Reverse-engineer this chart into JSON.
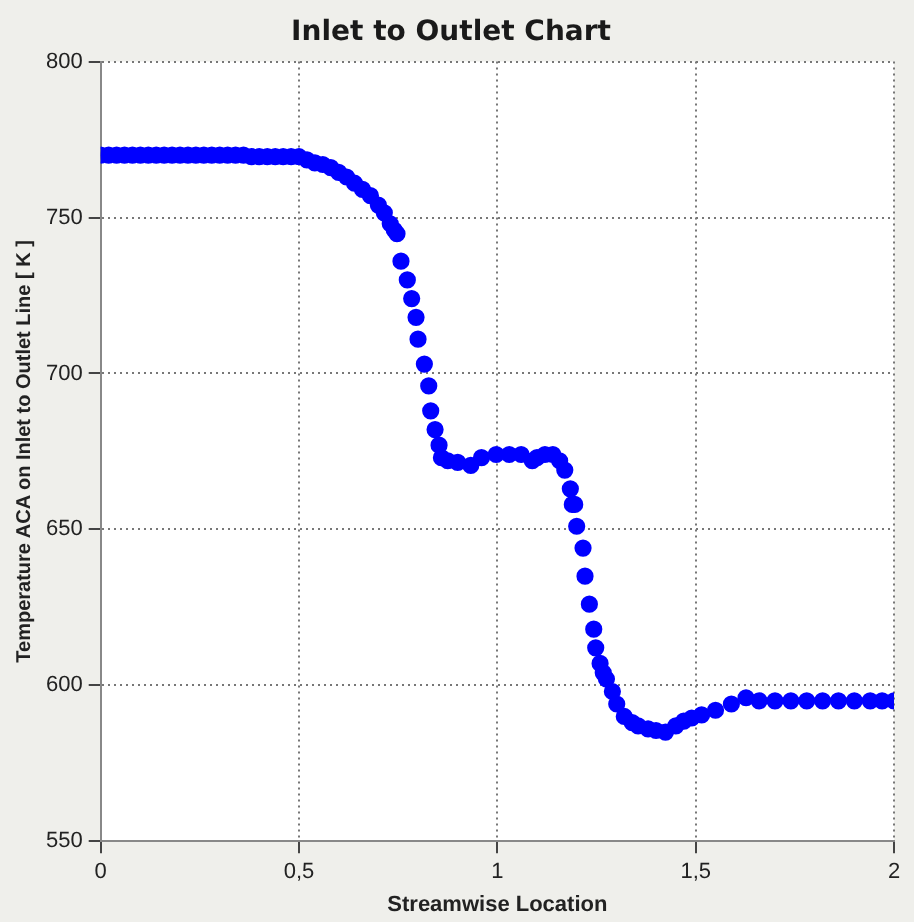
{
  "chart_data": {
    "type": "scatter",
    "title": "Inlet to Outlet Chart",
    "xlabel": "Streamwise Location",
    "ylabel": "Temperature ACA on Inlet to Outlet Line [ K ]",
    "xlim": [
      0,
      2
    ],
    "ylim": [
      550,
      800
    ],
    "xticks": [
      0,
      {
        "value": 0.5,
        "label": "0,5"
      },
      1,
      {
        "value": 1.5,
        "label": "1,5"
      },
      2
    ],
    "yticks": [
      550,
      600,
      650,
      700,
      750,
      800
    ],
    "grid": true,
    "marker": "circle",
    "legend": false,
    "series": [
      {
        "color": "#0000ff",
        "x": [
          0,
          0.02,
          0.04,
          0.06,
          0.08,
          0.1,
          0.12,
          0.14,
          0.16,
          0.18,
          0.2,
          0.22,
          0.24,
          0.26,
          0.28,
          0.3,
          0.32,
          0.34,
          0.36,
          0.38,
          0.4,
          0.42,
          0.44,
          0.46,
          0.48,
          0.5,
          0.52,
          0.54,
          0.56,
          0.58,
          0.6,
          0.62,
          0.64,
          0.66,
          0.68,
          0.7,
          0.715,
          0.73,
          0.74,
          0.747,
          0.757,
          0.773,
          0.784,
          0.795,
          0.8,
          0.816,
          0.827,
          0.832,
          0.843,
          0.853,
          0.859,
          0.875,
          0.9,
          0.933,
          0.96,
          0.997,
          1.03,
          1.06,
          1.088,
          1.1,
          1.12,
          1.14,
          1.157,
          1.17,
          1.184,
          1.189,
          1.195,
          1.2,
          1.216,
          1.221,
          1.232,
          1.243,
          1.248,
          1.259,
          1.267,
          1.275,
          1.29,
          1.301,
          1.32,
          1.34,
          1.355,
          1.38,
          1.4,
          1.424,
          1.45,
          1.47,
          1.49,
          1.515,
          1.55,
          1.59,
          1.627,
          1.66,
          1.7,
          1.74,
          1.78,
          1.82,
          1.86,
          1.9,
          1.94,
          1.97,
          2.0
        ],
        "values": [
          770,
          770,
          770,
          770,
          770,
          770,
          770,
          770,
          770,
          770,
          770,
          770,
          770,
          770,
          770,
          770,
          770,
          770,
          770,
          769.5,
          769.5,
          769.5,
          769.5,
          769.5,
          769.5,
          769.5,
          768.5,
          767.5,
          767,
          766,
          764.5,
          763,
          761,
          759,
          757,
          754,
          751.5,
          748,
          746,
          744.8,
          736,
          730,
          724,
          718,
          711,
          703,
          696,
          688,
          682,
          677,
          673,
          672,
          671.5,
          670.5,
          673,
          674,
          674,
          674,
          672,
          673,
          674,
          674,
          672,
          669,
          663,
          658,
          658,
          651,
          644,
          635,
          626,
          618,
          612,
          607,
          604,
          602,
          598,
          594,
          590,
          588,
          587,
          586,
          585.5,
          585,
          587,
          588.5,
          589.5,
          590.5,
          592,
          594,
          596,
          595,
          595,
          595,
          595,
          595,
          595,
          595,
          595,
          595,
          595
        ]
      }
    ]
  }
}
